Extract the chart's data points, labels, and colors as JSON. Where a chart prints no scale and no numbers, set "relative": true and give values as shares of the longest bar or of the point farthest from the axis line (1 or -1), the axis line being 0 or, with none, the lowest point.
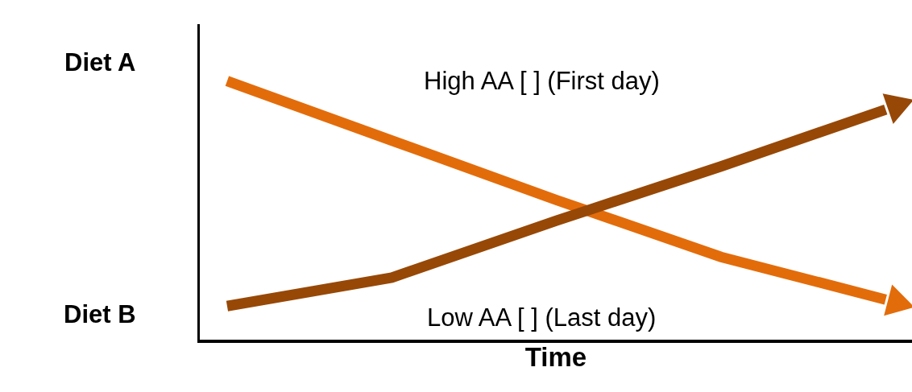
{
  "chart_data": {
    "type": "line",
    "relative": true,
    "xlabel": "Time",
    "categories": [
      null,
      null,
      null,
      null,
      null
    ],
    "series": [
      {
        "color": "#e36c0a",
        "values": [
          1,
          0.77,
          0.54,
          0.32,
          0.155
        ]
      },
      {
        "color": "#974806",
        "values": [
          0.13,
          0.24,
          0.46,
          0.67,
          0.89
        ]
      }
    ],
    "annotations": [
      "Diet A",
      "Diet B",
      "High AA [ ] (First day)",
      "Low AA [ ] (Last day)"
    ],
    "grid": false
  }
}
